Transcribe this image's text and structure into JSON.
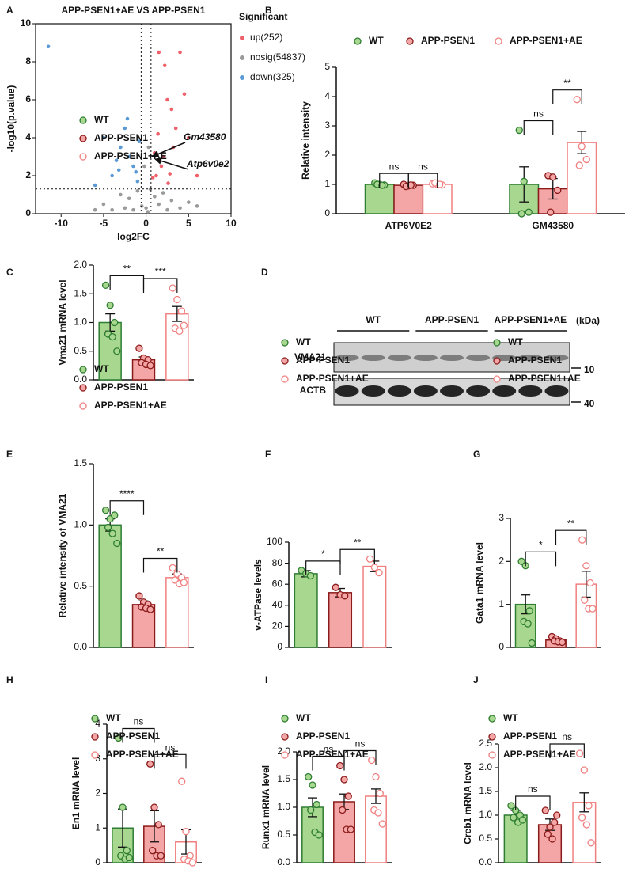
{
  "chart_data": [
    {
      "type": "scatter",
      "panel": "A",
      "title": "APP-PSEN1+AE VS APP-PSEN1",
      "xlabel": "log2FC",
      "ylabel": "-log10(p.value)",
      "legend_title": "Significant",
      "xlim": [
        -13,
        10
      ],
      "ylim": [
        0,
        10
      ],
      "xticks": [
        -10,
        -5,
        0,
        5,
        10
      ],
      "yticks": [
        0,
        2,
        4,
        6,
        8,
        10
      ],
      "vlines": [
        -0.58,
        0.58
      ],
      "hline": 1.3,
      "annotations": [
        "Gm43580",
        "Atp6v0e2"
      ],
      "series": [
        {
          "name": "up(252)",
          "color": "#f0606a",
          "x": [
            1.5,
            2,
            2.5,
            3,
            4,
            5,
            1.2,
            3.5,
            2.2,
            4.5,
            1.8,
            0.8,
            3.2,
            2.8,
            6,
            1,
            1.4,
            2.6
          ],
          "y": [
            8.5,
            3,
            6,
            5.5,
            8.5,
            4,
            2,
            4.5,
            7.8,
            6.3,
            2.5,
            1.9,
            3.5,
            2.1,
            2,
            3.2,
            4.2,
            1.6
          ]
        },
        {
          "name": "nosig(54837)",
          "color": "#9a9a9a",
          "x": [
            -5,
            -3,
            -2,
            -1,
            0,
            1,
            2,
            3,
            5,
            -4,
            0.5,
            -0.5,
            1.5,
            -1.5,
            4,
            6,
            -6,
            0.2,
            -0.2,
            0.3,
            -2.5,
            2.5
          ],
          "y": [
            0.5,
            1,
            0.8,
            1.2,
            0.3,
            0.9,
            1.1,
            0.7,
            0.6,
            0.2,
            1.3,
            0.4,
            0.5,
            0.2,
            0.3,
            0.4,
            0.2,
            0.1,
            2.5,
            3.5,
            0.3,
            0.2
          ]
        },
        {
          "name": "down(325)",
          "color": "#5b9bd5",
          "x": [
            -11.5,
            -5,
            -3,
            -2,
            -1.5,
            -4,
            -2.5,
            -1.2,
            -0.8,
            -3.5,
            -6,
            -2.2,
            -1,
            -3.2
          ],
          "y": [
            8.8,
            4,
            3.5,
            3,
            2.5,
            2,
            4.5,
            2.2,
            3.8,
            2.8,
            1.5,
            5,
            1.7,
            2.3
          ]
        }
      ]
    },
    {
      "type": "bar",
      "panel": "B",
      "ylabel": "Relative intensity",
      "categories": [
        "ATP6V0E2",
        "GM43580"
      ],
      "ylim": [
        0,
        5
      ],
      "yticks": [
        0,
        1,
        2,
        3,
        4,
        5
      ],
      "annotations": [
        "ns",
        "ns",
        "ns",
        "**"
      ],
      "series": [
        {
          "name": "WT",
          "color": "#a8d88f",
          "edgecolor": "#2e7d32",
          "values": [
            1.0,
            1.0
          ],
          "errors": [
            0.05,
            0.6
          ],
          "points": [
            [
              1.05,
              1.0,
              0.98,
              1.0,
              0.97
            ],
            [
              2.85,
              1.1,
              0.05,
              0.0
            ]
          ]
        },
        {
          "name": "APP-PSEN1",
          "color": "#f4a6a6",
          "edgecolor": "#8b1a1a",
          "values": [
            0.97,
            0.85
          ],
          "errors": [
            0.04,
            0.35
          ],
          "points": [
            [
              1.0,
              0.95,
              0.97,
              0.93,
              0.98
            ],
            [
              1.3,
              1.25,
              0.8,
              0.05
            ]
          ]
        },
        {
          "name": "APP-PSEN1+AE",
          "color": "#ffffff",
          "edgecolor": "#f08080",
          "values": [
            1.0,
            2.43
          ],
          "errors": [
            0.03,
            0.38
          ],
          "points": [
            [
              1.02,
              1.0,
              0.98,
              1.05,
              1.0
            ],
            [
              3.9,
              2.3,
              1.85,
              1.65
            ]
          ]
        }
      ]
    },
    {
      "type": "bar",
      "panel": "C",
      "ylabel": "Vma21 mRNA level",
      "ylim": [
        0,
        2
      ],
      "yticks": [
        {
          "value": 0,
          "label": "0.0"
        },
        0.5,
        {
          "value": 1,
          "label": "1.0"
        },
        1.5,
        {
          "value": 2,
          "label": "2.0"
        }
      ],
      "annotations": [
        "**",
        "***"
      ],
      "series": [
        {
          "name": "WT",
          "color": "#a8d88f",
          "edgecolor": "#2e7d32",
          "values": [
            1.0
          ],
          "errors": [
            0.15
          ],
          "points": [
            [
              1.65,
              1.3,
              1.0,
              0.8,
              0.75,
              0.5
            ]
          ]
        },
        {
          "name": "APP-PSEN1",
          "color": "#f4a6a6",
          "edgecolor": "#8b1a1a",
          "values": [
            0.35
          ],
          "errors": [
            0.05
          ],
          "points": [
            [
              0.55,
              0.38,
              0.35,
              0.3,
              0.27,
              0.25
            ]
          ]
        },
        {
          "name": "APP-PSEN1+AE",
          "color": "#ffffff",
          "edgecolor": "#f08080",
          "values": [
            1.15
          ],
          "errors": [
            0.13
          ],
          "points": [
            [
              1.6,
              1.4,
              1.2,
              0.9,
              0.85,
              0.95
            ]
          ]
        }
      ]
    },
    {
      "type": "blot",
      "panel": "D",
      "lanes": [
        "WT",
        "APP-PSEN1",
        "APP-PSEN1+AE"
      ],
      "rows": [
        "VMA21",
        "ACTB"
      ],
      "unit": "(kDa)",
      "markers": [
        10,
        40
      ]
    },
    {
      "type": "bar",
      "panel": "E",
      "ylabel": "Relative intensity of VMA21",
      "ylim": [
        0,
        1.5
      ],
      "yticks": [
        {
          "value": 0,
          "label": "0.0"
        },
        0.5,
        {
          "value": 1,
          "label": "1.0"
        },
        1.5
      ],
      "annotations": [
        "****",
        "**"
      ],
      "series": [
        {
          "name": "WT",
          "color": "#a8d88f",
          "edgecolor": "#2e7d32",
          "values": [
            1.0
          ],
          "errors": [
            0.05
          ],
          "points": [
            [
              1.12,
              1.05,
              1.08,
              0.98,
              0.93,
              0.85
            ]
          ]
        },
        {
          "name": "APP-PSEN1",
          "color": "#f4a6a6",
          "edgecolor": "#8b1a1a",
          "values": [
            0.35
          ],
          "errors": [
            0.03
          ],
          "points": [
            [
              0.42,
              0.37,
              0.35,
              0.33,
              0.32,
              0.31
            ]
          ]
        },
        {
          "name": "APP-PSEN1+AE",
          "color": "#ffffff",
          "edgecolor": "#f08080",
          "values": [
            0.57
          ],
          "errors": [
            0.03
          ],
          "points": [
            [
              0.65,
              0.6,
              0.57,
              0.55,
              0.52,
              0.53
            ]
          ]
        }
      ]
    },
    {
      "type": "bar",
      "panel": "F",
      "ylabel": "v-ATPase levels",
      "ylim": [
        0,
        100
      ],
      "yticks": [
        0,
        20,
        40,
        60,
        80,
        100
      ],
      "annotations": [
        "*",
        "**"
      ],
      "series": [
        {
          "name": "WT",
          "color": "#a8d88f",
          "edgecolor": "#2e7d32",
          "values": [
            70
          ],
          "errors": [
            3
          ],
          "points": [
            [
              73,
              70,
              68
            ]
          ]
        },
        {
          "name": "APP-PSEN1",
          "color": "#f4a6a6",
          "edgecolor": "#8b1a1a",
          "values": [
            52
          ],
          "errors": [
            4
          ],
          "points": [
            [
              57,
              50,
              49
            ]
          ]
        },
        {
          "name": "APP-PSEN1+AE",
          "color": "#ffffff",
          "edgecolor": "#f08080",
          "values": [
            77
          ],
          "errors": [
            5
          ],
          "points": [
            [
              84,
              76,
              71
            ]
          ]
        }
      ]
    },
    {
      "type": "bar",
      "panel": "G",
      "ylabel": "Gata1 mRNA level",
      "ylim": [
        0,
        3
      ],
      "yticks": [
        0,
        1,
        2,
        3
      ],
      "annotations": [
        "*",
        "**"
      ],
      "series": [
        {
          "name": "WT",
          "color": "#a8d88f",
          "edgecolor": "#2e7d32",
          "values": [
            1.0
          ],
          "errors": [
            0.22
          ],
          "points": [
            [
              2.0,
              1.9,
              0.85,
              0.6,
              0.55,
              0.1
            ]
          ]
        },
        {
          "name": "APP-PSEN1",
          "color": "#f4a6a6",
          "edgecolor": "#8b1a1a",
          "values": [
            0.17
          ],
          "errors": [
            0.03
          ],
          "points": [
            [
              0.25,
              0.2,
              0.15,
              0.15,
              0.13,
              0.12
            ]
          ]
        },
        {
          "name": "APP-PSEN1+AE",
          "color": "#ffffff",
          "edgecolor": "#f08080",
          "values": [
            1.47
          ],
          "errors": [
            0.3
          ],
          "points": [
            [
              2.5,
              1.9,
              1.5,
              1.1,
              0.9,
              0.9
            ]
          ]
        }
      ]
    },
    {
      "type": "bar",
      "panel": "H",
      "ylabel": "En1 mRNA level",
      "ylim": [
        0,
        4
      ],
      "yticks": [
        0,
        1,
        2,
        3,
        4
      ],
      "annotations": [
        "ns",
        "ns"
      ],
      "series": [
        {
          "name": "WT",
          "color": "#a8d88f",
          "edgecolor": "#2e7d32",
          "values": [
            1.0
          ],
          "errors": [
            0.55
          ],
          "points": [
            [
              3.6,
              1.6,
              0.35,
              0.2,
              0.1,
              0.15
            ]
          ]
        },
        {
          "name": "APP-PSEN1",
          "color": "#f4a6a6",
          "edgecolor": "#8b1a1a",
          "values": [
            1.05
          ],
          "errors": [
            0.45
          ],
          "points": [
            [
              2.85,
              1.6,
              1.1,
              0.35,
              0.2,
              0.2
            ]
          ]
        },
        {
          "name": "APP-PSEN1+AE",
          "color": "#ffffff",
          "edgecolor": "#f08080",
          "values": [
            0.6
          ],
          "errors": [
            0.35
          ],
          "points": [
            [
              2.35,
              0.9,
              0.2,
              0.1,
              0.05,
              0.0
            ]
          ]
        }
      ]
    },
    {
      "type": "bar",
      "panel": "I",
      "ylabel": "Runx1 mRNA level",
      "ylim": [
        0,
        2
      ],
      "yticks": [
        {
          "value": 0,
          "label": "0.0"
        },
        0.5,
        {
          "value": 1,
          "label": "1.0"
        },
        1.5,
        {
          "value": 2,
          "label": "2.0"
        }
      ],
      "annotations": [
        "ns",
        "ns"
      ],
      "series": [
        {
          "name": "WT",
          "color": "#a8d88f",
          "edgecolor": "#2e7d32",
          "values": [
            1.0
          ],
          "errors": [
            0.17
          ],
          "points": [
            [
              1.55,
              1.4,
              1.05,
              0.95,
              0.55,
              0.5
            ]
          ]
        },
        {
          "name": "APP-PSEN1",
          "color": "#f4a6a6",
          "edgecolor": "#8b1a1a",
          "values": [
            1.1
          ],
          "errors": [
            0.14
          ],
          "points": [
            [
              1.75,
              1.5,
              1.2,
              0.95,
              0.6,
              0.6
            ]
          ]
        },
        {
          "name": "APP-PSEN1+AE",
          "color": "#ffffff",
          "edgecolor": "#f08080",
          "values": [
            1.2
          ],
          "errors": [
            0.13
          ],
          "points": [
            [
              1.85,
              1.55,
              1.25,
              0.95,
              0.9,
              0.7
            ]
          ]
        }
      ]
    },
    {
      "type": "bar",
      "panel": "J",
      "ylabel": "Creb1 mRNA level",
      "ylim": [
        0,
        2.5
      ],
      "yticks": [
        {
          "value": 0,
          "label": "0.0"
        },
        0.5,
        {
          "value": 1,
          "label": "1.0"
        },
        1.5,
        {
          "value": 2,
          "label": "2.0"
        },
        2.5
      ],
      "annotations": [
        "ns",
        "ns"
      ],
      "series": [
        {
          "name": "WT",
          "color": "#a8d88f",
          "edgecolor": "#2e7d32",
          "values": [
            1.0
          ],
          "errors": [
            0.1
          ],
          "points": [
            [
              1.2,
              1.1,
              1.0,
              0.95,
              0.85,
              0.9
            ]
          ]
        },
        {
          "name": "APP-PSEN1",
          "color": "#f4a6a6",
          "edgecolor": "#8b1a1a",
          "values": [
            0.8
          ],
          "errors": [
            0.12
          ],
          "points": [
            [
              1.1,
              0.75,
              0.85,
              0.6,
              0.5,
              1.0
            ]
          ]
        },
        {
          "name": "APP-PSEN1+AE",
          "color": "#ffffff",
          "edgecolor": "#f08080",
          "values": [
            1.27
          ],
          "errors": [
            0.2
          ],
          "points": [
            [
              2.3,
              1.95,
              1.2,
              0.95,
              0.8,
              0.42
            ]
          ]
        }
      ]
    }
  ]
}
